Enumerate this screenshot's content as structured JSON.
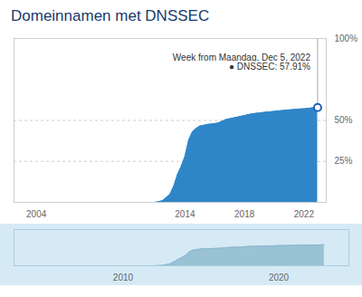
{
  "chart_data": [
    {
      "type": "area",
      "title": "Domeinnamen met DNSSEC",
      "x": [
        2003.0,
        2004.0,
        2005.0,
        2006.0,
        2007.0,
        2008.0,
        2009.0,
        2010.0,
        2011.0,
        2012.0,
        2012.5,
        2013.0,
        2013.25,
        2013.5,
        2013.75,
        2014.0,
        2014.25,
        2014.5,
        2014.75,
        2015.0,
        2015.25,
        2015.5,
        2015.75,
        2016.0,
        2016.25,
        2016.5,
        2016.75,
        2017.0,
        2017.25,
        2017.5,
        2017.75,
        2018.0,
        2018.25,
        2018.5,
        2018.75,
        2019.0,
        2019.25,
        2019.5,
        2019.75,
        2020.0,
        2020.25,
        2020.5,
        2020.75,
        2021.0,
        2021.25,
        2021.5,
        2021.75,
        2022.0,
        2022.25,
        2022.5,
        2022.75,
        2022.92
      ],
      "values": [
        0,
        0,
        0,
        0,
        0,
        0,
        0,
        0,
        0,
        0,
        1,
        5,
        10,
        17,
        22,
        28,
        38,
        43,
        45,
        46.5,
        47,
        47.5,
        47.8,
        48.0,
        48.5,
        49.5,
        50.5,
        51.0,
        51.5,
        52.0,
        52.5,
        53.0,
        53.5,
        54.0,
        54.3,
        54.5,
        54.8,
        55.1,
        55.3,
        55.5,
        55.8,
        56.0,
        56.2,
        56.4,
        56.6,
        56.8,
        57.0,
        57.1,
        57.3,
        57.6,
        57.8,
        57.91
      ],
      "color": "#2e86c8",
      "xlim": [
        2002.5,
        2023.5
      ],
      "xticks": [
        2004,
        2014,
        2018,
        2022
      ],
      "ylim": [
        0,
        100
      ],
      "yticks": [
        {
          "value": 25,
          "label": "25%"
        },
        {
          "value": 50,
          "label": "50%"
        },
        {
          "value": 100,
          "label": "100%"
        }
      ],
      "grid": true,
      "annotations": [
        {
          "x": 2022.92,
          "y": 57.91,
          "text": "Week from Maandag, Dec 5, 2022\n● DNSSEC: 57.91%",
          "color": "#2060bb",
          "marker": "circle"
        }
      ]
    },
    {
      "type": "area",
      "x": [
        2003.0,
        2004.0,
        2005.0,
        2006.0,
        2007.0,
        2008.0,
        2009.0,
        2010.0,
        2011.0,
        2012.0,
        2012.5,
        2013.0,
        2013.25,
        2013.5,
        2013.75,
        2014.0,
        2014.25,
        2014.5,
        2014.75,
        2015.0,
        2015.25,
        2015.5,
        2015.75,
        2016.0,
        2016.25,
        2016.5,
        2016.75,
        2017.0,
        2017.25,
        2017.5,
        2017.75,
        2018.0,
        2018.25,
        2018.5,
        2018.75,
        2019.0,
        2019.25,
        2019.5,
        2019.75,
        2020.0,
        2020.25,
        2020.5,
        2020.75,
        2021.0,
        2021.25,
        2021.5,
        2021.75,
        2022.0,
        2022.25,
        2022.5,
        2022.75,
        2022.92
      ],
      "values": [
        0,
        0,
        0,
        0,
        0,
        0,
        0,
        0,
        0,
        0,
        1,
        5,
        10,
        17,
        22,
        28,
        38,
        43,
        45,
        46.5,
        47,
        47.5,
        47.8,
        48.0,
        48.5,
        49.5,
        50.5,
        51.0,
        51.5,
        52.0,
        52.5,
        53.0,
        53.5,
        54.0,
        54.3,
        54.5,
        54.8,
        55.1,
        55.3,
        55.5,
        55.8,
        56.0,
        56.2,
        56.4,
        56.6,
        56.8,
        57.0,
        57.1,
        57.3,
        57.6,
        57.8,
        57.91
      ],
      "color": "#8ab8cc",
      "xlim": [
        2003,
        2024.5
      ],
      "xticks": [
        2010,
        2020
      ],
      "ylim": [
        0,
        100
      ],
      "tick_labels": "x"
    }
  ]
}
